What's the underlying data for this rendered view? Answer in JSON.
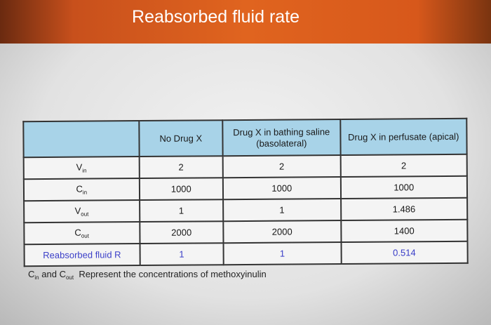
{
  "title": "Reabsorbed fluid rate",
  "table": {
    "headers": [
      "",
      "No Drug X",
      "Drug X in bathing saline (basolateral)",
      "Drug X in perfusate (apical)"
    ],
    "rows": [
      {
        "label": "V",
        "sub": "in",
        "values": [
          "2",
          "2",
          "2"
        ]
      },
      {
        "label": "C",
        "sub": "in",
        "values": [
          "1000",
          "1000",
          "1000"
        ]
      },
      {
        "label": "V",
        "sub": "out",
        "values": [
          "1",
          "1",
          "1.486"
        ]
      },
      {
        "label": "C",
        "sub": "out",
        "values": [
          "2000",
          "2000",
          "1400"
        ]
      },
      {
        "label": "Reabsorbed fluid R",
        "sub": "",
        "values": [
          "1",
          "1",
          "0.514"
        ]
      }
    ]
  },
  "footnote": {
    "c": "C",
    "in": "in",
    "and": "and",
    "out": "out",
    "text": "Represent the concentrations of methoxyinulin"
  },
  "colors": {
    "header_bg": "#a8d3e8",
    "title_band": "#e0641f",
    "result_text": "#3b3fc8"
  }
}
